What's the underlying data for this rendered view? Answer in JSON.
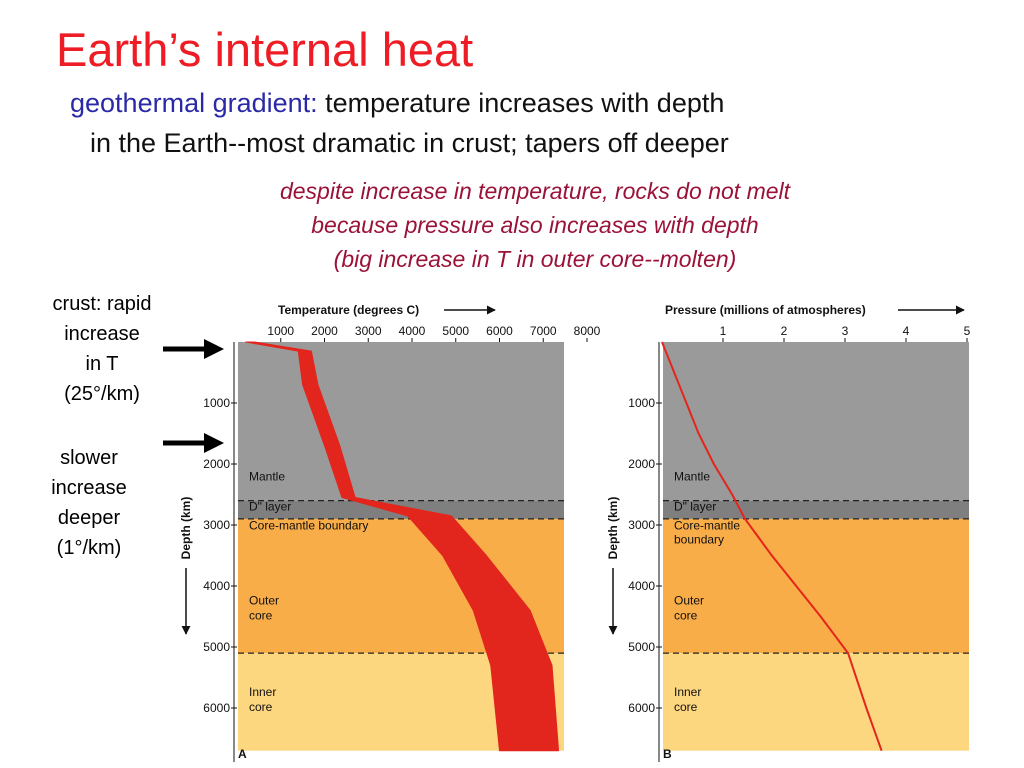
{
  "slide": {
    "title": "Earth’s internal heat",
    "subtitle_term": "geothermal gradient:",
    "subtitle_rest": " temperature increases with depth",
    "subtitle_line2": "in the Earth--most dramatic in crust; tapers off deeper",
    "notes": [
      "despite increase in temperature, rocks do not melt",
      "because pressure also increases with depth",
      "(big increase in T in outer core--molten)"
    ],
    "crust_note": [
      "crust: rapid",
      "increase",
      "in T",
      "(25°/km)"
    ],
    "deep_note": [
      "slower",
      "increase",
      "deeper",
      "(1°/km)"
    ]
  },
  "colors": {
    "title": "#ee1c24",
    "term": "#2a2aa8",
    "note": "#9b1238",
    "mantle": "#9a9a9a",
    "d_layer": "#7f7f7f",
    "outer_core": "#f9ad48",
    "inner_core": "#fdd780",
    "curve": "#e2261d"
  },
  "layers": [
    {
      "name": "Mantle",
      "top": 0,
      "bottom": 2600
    },
    {
      "name": "D\" layer",
      "top": 2600,
      "bottom": 2900
    },
    {
      "name": "Core-mantle boundary",
      "name_b": [
        "Core-mantle",
        "boundary"
      ],
      "top": 2900,
      "bottom": 5100
    },
    {
      "name": "Outer core",
      "label": [
        "Outer",
        "core"
      ],
      "top": 2900,
      "bottom": 5100
    },
    {
      "name": "Inner core",
      "label": [
        "Inner",
        "core"
      ],
      "top": 5100,
      "bottom": 6700
    }
  ],
  "chart_data": [
    {
      "type": "area",
      "panel_label": "A",
      "xlabel": "Temperature (degrees C)",
      "ylabel": "Depth (km)",
      "xlim": [
        0,
        8000
      ],
      "ylim": [
        0,
        6700
      ],
      "x_ticks": [
        1000,
        2000,
        3000,
        4000,
        5000,
        6000,
        7000,
        8000
      ],
      "y_ticks": [
        1000,
        2000,
        3000,
        4000,
        5000,
        6000
      ],
      "series": [
        {
          "depth": [
            0,
            150,
            700,
            1700,
            2550,
            2850,
            3500,
            4400,
            5300,
            6700
          ],
          "t_low": [
            200,
            1400,
            1500,
            2000,
            2400,
            3900,
            4700,
            5400,
            5800,
            6000
          ],
          "t_high": [
            400,
            1700,
            1850,
            2350,
            2700,
            4900,
            5700,
            6700,
            7200,
            7350
          ]
        }
      ]
    },
    {
      "type": "line",
      "panel_label": "B",
      "xlabel": "Pressure (millions of atmospheres)",
      "ylabel": "Depth (km)",
      "xlim": [
        0,
        5
      ],
      "ylim": [
        0,
        6700
      ],
      "x_ticks": [
        1,
        2,
        3,
        4,
        5
      ],
      "y_ticks": [
        1000,
        2000,
        3000,
        4000,
        5000,
        6000
      ],
      "series": [
        {
          "depth": [
            0,
            500,
            1000,
            1500,
            2000,
            2500,
            2900,
            3500,
            4000,
            4500,
            5100,
            6000,
            6700
          ],
          "pressure": [
            0,
            0.2,
            0.4,
            0.6,
            0.85,
            1.15,
            1.36,
            1.8,
            2.2,
            2.6,
            3.05,
            3.35,
            3.6
          ]
        }
      ]
    }
  ]
}
